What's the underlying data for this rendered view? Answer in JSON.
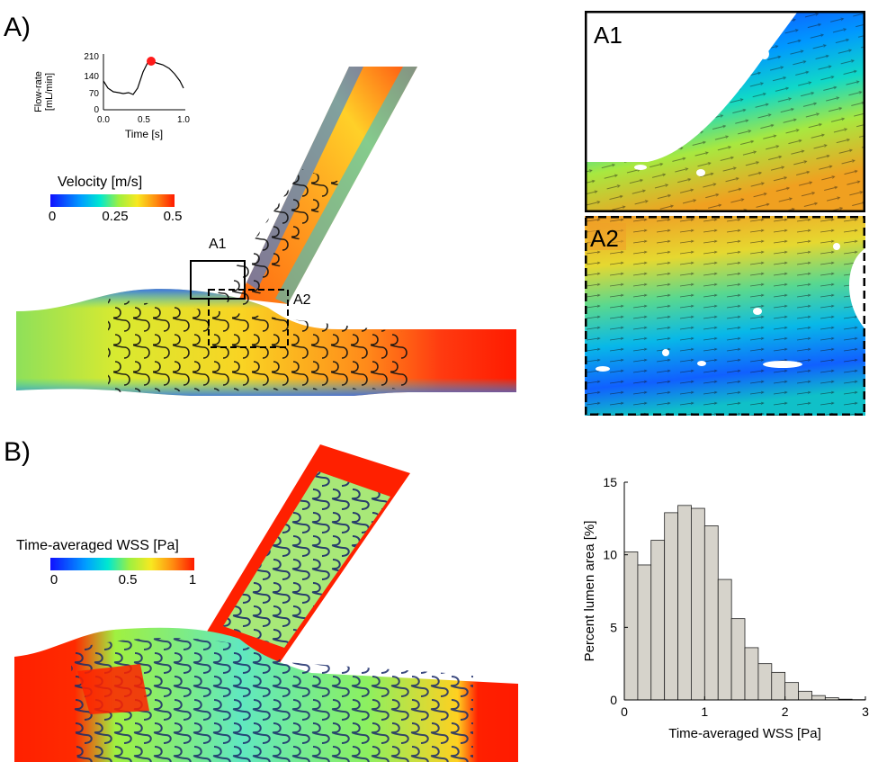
{
  "panel_a": {
    "label": "A)",
    "flow_inset": {
      "ylabel_line1": "Flow-rate",
      "ylabel_line2": "[mL/min]",
      "xlabel": "Time [s]",
      "yticks": [
        "210",
        "140",
        "70",
        "0"
      ],
      "xticks": [
        "0.0",
        "0.5",
        "1.0"
      ],
      "marker_color": "#ff1a1a"
    },
    "colorbar": {
      "title": "Velocity [m/s]",
      "ticks": [
        "0",
        "0.25",
        "0.5"
      ]
    },
    "box_labels": {
      "a1": "A1",
      "a2": "A2"
    },
    "zoom_a1": {
      "label": "A1"
    },
    "zoom_a2": {
      "label": "A2"
    }
  },
  "panel_b": {
    "label": "B)",
    "colorbar": {
      "title": "Time-averaged WSS [Pa]",
      "ticks": [
        "0",
        "0.5",
        "1"
      ]
    }
  },
  "chart_data": {
    "type": "bar",
    "xlabel": "Time-averaged WSS [Pa]",
    "ylabel": "Percent lumen area [%]",
    "xlim": [
      0,
      3
    ],
    "ylim": [
      0,
      15
    ],
    "xticks": [
      "0",
      "1",
      "2",
      "3"
    ],
    "yticks": [
      "0",
      "5",
      "10",
      "15"
    ],
    "bin_width": 0.167,
    "bin_starts": [
      0.0,
      0.167,
      0.333,
      0.5,
      0.667,
      0.833,
      1.0,
      1.167,
      1.333,
      1.5,
      1.667,
      1.833,
      2.0,
      2.167,
      2.333,
      2.5,
      2.667,
      2.833
    ],
    "values": [
      10.2,
      9.3,
      11.0,
      12.9,
      13.4,
      13.2,
      12.0,
      8.3,
      5.6,
      3.6,
      2.5,
      1.9,
      1.2,
      0.6,
      0.3,
      0.15,
      0.05,
      0.02
    ],
    "bar_color": "#d6d3cb"
  }
}
